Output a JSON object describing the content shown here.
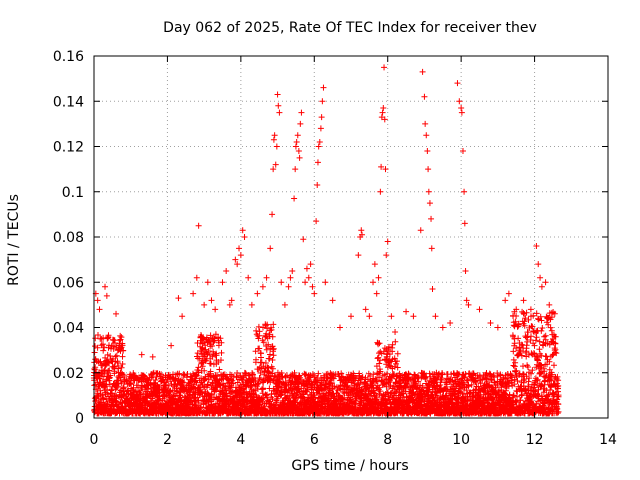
{
  "chart_data": {
    "type": "scatter",
    "title": "Day 062 of 2025, Rate Of TEC Index for receiver thev",
    "xlabel": "GPS time / hours",
    "ylabel": "ROTI / TECUs",
    "xlim": [
      0,
      14
    ],
    "ylim": [
      0,
      0.16
    ],
    "x_ticks": [
      0,
      2,
      4,
      6,
      8,
      10,
      12,
      14
    ],
    "x_tick_labels": [
      "0",
      "2",
      "4",
      "6",
      "8",
      "10",
      "12",
      "14"
    ],
    "y_ticks": [
      0,
      0.02,
      0.04,
      0.06,
      0.08,
      0.1,
      0.12,
      0.14,
      0.16
    ],
    "y_tick_labels": [
      "0",
      "0.02",
      "0.04",
      "0.06",
      "0.08",
      "0.1",
      "0.12",
      "0.14",
      "0.16"
    ],
    "grid": true,
    "marker": "+",
    "marker_color": "#ff0000",
    "series": [
      {
        "name": "ROTI",
        "points": [
          [
            0.05,
            0.055
          ],
          [
            0.1,
            0.052
          ],
          [
            0.15,
            0.048
          ],
          [
            0.3,
            0.058
          ],
          [
            0.35,
            0.054
          ],
          [
            0.6,
            0.046
          ],
          [
            0.2,
            0.035
          ],
          [
            0.7,
            0.032
          ],
          [
            1.3,
            0.028
          ],
          [
            1.6,
            0.027
          ],
          [
            2.1,
            0.032
          ],
          [
            2.3,
            0.053
          ],
          [
            2.4,
            0.045
          ],
          [
            2.7,
            0.055
          ],
          [
            2.8,
            0.062
          ],
          [
            2.85,
            0.085
          ],
          [
            3.0,
            0.05
          ],
          [
            3.1,
            0.06
          ],
          [
            3.2,
            0.052
          ],
          [
            3.3,
            0.048
          ],
          [
            3.5,
            0.06
          ],
          [
            3.6,
            0.065
          ],
          [
            3.7,
            0.05
          ],
          [
            3.75,
            0.052
          ],
          [
            3.85,
            0.07
          ],
          [
            3.9,
            0.068
          ],
          [
            3.95,
            0.075
          ],
          [
            4.0,
            0.072
          ],
          [
            4.05,
            0.083
          ],
          [
            4.1,
            0.08
          ],
          [
            4.2,
            0.062
          ],
          [
            4.3,
            0.05
          ],
          [
            4.45,
            0.055
          ],
          [
            4.6,
            0.058
          ],
          [
            4.7,
            0.062
          ],
          [
            4.8,
            0.075
          ],
          [
            4.85,
            0.09
          ],
          [
            4.88,
            0.11
          ],
          [
            4.9,
            0.123
          ],
          [
            4.92,
            0.125
          ],
          [
            4.95,
            0.112
          ],
          [
            4.98,
            0.12
          ],
          [
            5.0,
            0.143
          ],
          [
            5.02,
            0.138
          ],
          [
            5.05,
            0.135
          ],
          [
            5.1,
            0.06
          ],
          [
            5.2,
            0.05
          ],
          [
            5.3,
            0.058
          ],
          [
            5.35,
            0.062
          ],
          [
            5.4,
            0.065
          ],
          [
            5.45,
            0.097
          ],
          [
            5.48,
            0.11
          ],
          [
            5.5,
            0.12
          ],
          [
            5.52,
            0.122
          ],
          [
            5.55,
            0.125
          ],
          [
            5.58,
            0.118
          ],
          [
            5.6,
            0.115
          ],
          [
            5.62,
            0.13
          ],
          [
            5.65,
            0.135
          ],
          [
            5.7,
            0.079
          ],
          [
            5.75,
            0.06
          ],
          [
            5.8,
            0.066
          ],
          [
            5.85,
            0.062
          ],
          [
            5.9,
            0.068
          ],
          [
            5.95,
            0.058
          ],
          [
            6.0,
            0.055
          ],
          [
            6.05,
            0.087
          ],
          [
            6.08,
            0.103
          ],
          [
            6.1,
            0.113
          ],
          [
            6.12,
            0.12
          ],
          [
            6.15,
            0.122
          ],
          [
            6.18,
            0.128
          ],
          [
            6.2,
            0.133
          ],
          [
            6.22,
            0.14
          ],
          [
            6.25,
            0.146
          ],
          [
            6.3,
            0.06
          ],
          [
            6.5,
            0.052
          ],
          [
            6.7,
            0.04
          ],
          [
            7.0,
            0.045
          ],
          [
            7.2,
            0.072
          ],
          [
            7.25,
            0.08
          ],
          [
            7.28,
            0.083
          ],
          [
            7.3,
            0.081
          ],
          [
            7.4,
            0.048
          ],
          [
            7.5,
            0.045
          ],
          [
            7.6,
            0.06
          ],
          [
            7.65,
            0.068
          ],
          [
            7.7,
            0.055
          ],
          [
            7.75,
            0.062
          ],
          [
            7.8,
            0.1
          ],
          [
            7.82,
            0.111
          ],
          [
            7.84,
            0.133
          ],
          [
            7.86,
            0.135
          ],
          [
            7.88,
            0.137
          ],
          [
            7.9,
            0.155
          ],
          [
            7.92,
            0.132
          ],
          [
            7.94,
            0.11
          ],
          [
            7.96,
            0.072
          ],
          [
            8.0,
            0.078
          ],
          [
            8.1,
            0.045
          ],
          [
            8.2,
            0.038
          ],
          [
            8.5,
            0.047
          ],
          [
            8.7,
            0.045
          ],
          [
            8.9,
            0.083
          ],
          [
            8.95,
            0.153
          ],
          [
            9.0,
            0.142
          ],
          [
            9.02,
            0.13
          ],
          [
            9.05,
            0.125
          ],
          [
            9.08,
            0.118
          ],
          [
            9.1,
            0.11
          ],
          [
            9.12,
            0.1
          ],
          [
            9.15,
            0.095
          ],
          [
            9.18,
            0.088
          ],
          [
            9.2,
            0.075
          ],
          [
            9.22,
            0.057
          ],
          [
            9.3,
            0.045
          ],
          [
            9.5,
            0.04
          ],
          [
            9.7,
            0.042
          ],
          [
            9.9,
            0.148
          ],
          [
            9.95,
            0.14
          ],
          [
            10.0,
            0.137
          ],
          [
            10.02,
            0.135
          ],
          [
            10.05,
            0.118
          ],
          [
            10.08,
            0.1
          ],
          [
            10.1,
            0.086
          ],
          [
            10.12,
            0.065
          ],
          [
            10.15,
            0.052
          ],
          [
            10.2,
            0.05
          ],
          [
            10.5,
            0.048
          ],
          [
            10.8,
            0.042
          ],
          [
            11.0,
            0.04
          ],
          [
            11.2,
            0.052
          ],
          [
            11.3,
            0.055
          ],
          [
            11.5,
            0.048
          ],
          [
            11.7,
            0.052
          ],
          [
            11.9,
            0.048
          ],
          [
            12.05,
            0.076
          ],
          [
            12.1,
            0.068
          ],
          [
            12.15,
            0.062
          ],
          [
            12.2,
            0.058
          ],
          [
            12.3,
            0.06
          ],
          [
            12.4,
            0.05
          ],
          [
            12.5,
            0.035
          ],
          [
            12.55,
            0.03
          ]
        ]
      }
    ]
  }
}
